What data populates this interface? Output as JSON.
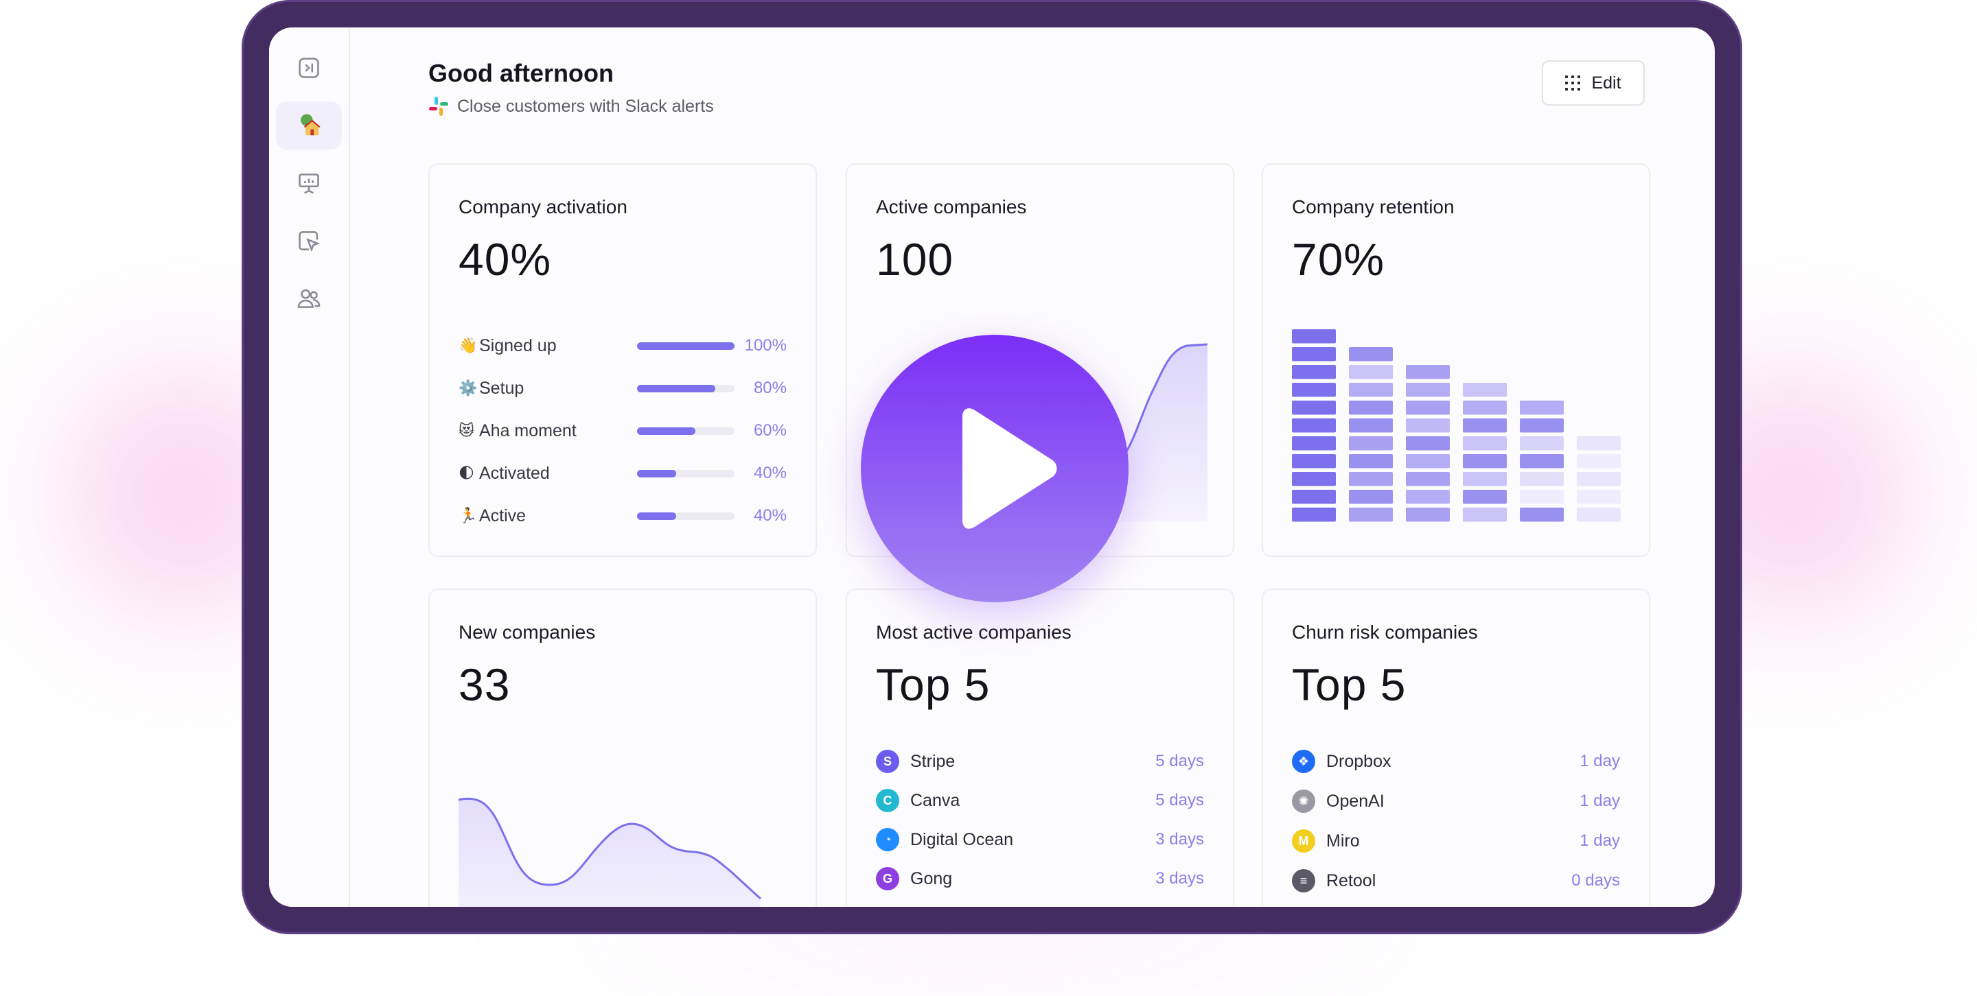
{
  "header": {
    "greeting": "Good afternoon",
    "subtitle": "Close customers with Slack alerts",
    "edit_label": "Edit"
  },
  "sidebar": {
    "items": [
      {
        "name": "collapse-sidebar",
        "icon": "sidebar-toggle-icon"
      },
      {
        "name": "home",
        "icon": "home-emoji-icon",
        "active": true
      },
      {
        "name": "presentation",
        "icon": "presentation-chart-icon"
      },
      {
        "name": "click-tracking",
        "icon": "cursor-click-icon"
      },
      {
        "name": "people",
        "icon": "users-icon"
      }
    ]
  },
  "cards": {
    "activation": {
      "title": "Company activation",
      "value": "40%",
      "rows": [
        {
          "emoji": "👋",
          "label": "Signed up",
          "pct": "100%",
          "level": 1.0
        },
        {
          "emoji": "⚙️",
          "label": "Setup",
          "pct": "80%",
          "level": 0.8
        },
        {
          "emoji": "😻",
          "label": "Aha moment",
          "pct": "60%",
          "level": 0.6
        },
        {
          "emoji": "🌓",
          "label": "Activated",
          "pct": "40%",
          "level": 0.4
        },
        {
          "emoji": "🏃",
          "label": "Active",
          "pct": "40%",
          "level": 0.4
        }
      ]
    },
    "active": {
      "title": "Active companies",
      "value": "100"
    },
    "retention": {
      "title": "Company retention",
      "value": "70%"
    },
    "new": {
      "title": "New companies",
      "value": "33"
    },
    "most_active": {
      "title": "Most active companies",
      "value": "Top 5",
      "rows": [
        {
          "name": "Stripe",
          "days": "5 days",
          "color": "#6b5cf0",
          "glyph": "S"
        },
        {
          "name": "Canva",
          "days": "5 days",
          "color": "#22b8cf",
          "glyph": "C"
        },
        {
          "name": "Digital Ocean",
          "days": "3 days",
          "color": "#1f8cff",
          "glyph": "◔"
        },
        {
          "name": "Gong",
          "days": "3 days",
          "color": "#8d3fe0",
          "glyph": "G"
        }
      ]
    },
    "churn": {
      "title": "Churn risk companies",
      "value": "Top 5",
      "rows": [
        {
          "name": "Dropbox",
          "days": "1 day",
          "color": "#1e6cf5",
          "glyph": "❖"
        },
        {
          "name": "OpenAI",
          "days": "1 day",
          "color": "#9a98a3",
          "glyph": "✺"
        },
        {
          "name": "Miro",
          "days": "1 day",
          "color": "#f2cf1f",
          "glyph": "M"
        },
        {
          "name": "Retool",
          "days": "0 days",
          "color": "#5b5966",
          "glyph": "≡"
        }
      ]
    }
  },
  "colors": {
    "accent": "#7c70ec",
    "frame": "#432c60",
    "play_top": "#7b2ff7",
    "play_bottom": "#a184f2"
  },
  "overlay": {
    "icon": "play-icon"
  }
}
